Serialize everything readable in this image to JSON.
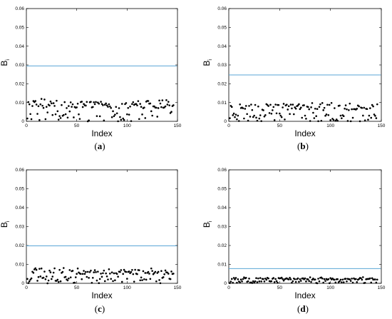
{
  "chart_data": [
    {
      "type": "scatter",
      "panel": "a",
      "caption_left": "(",
      "caption_letter": "a",
      "caption_right": ")",
      "xlabel": "Index",
      "ylabel_main": "B",
      "ylabel_sub": "i",
      "xlim": [
        0,
        150
      ],
      "ylim": [
        0,
        0.06
      ],
      "xticks": [
        0,
        50,
        100,
        150
      ],
      "yticks": [
        0,
        0.01,
        0.02,
        0.03,
        0.04,
        0.05,
        0.06
      ],
      "threshold": 0.0295,
      "threshold_color": "#5aa6d6",
      "point_color": "#000000",
      "max_value": 0.0155
    },
    {
      "type": "scatter",
      "panel": "b",
      "caption_left": "(",
      "caption_letter": "b",
      "caption_right": ")",
      "xlabel": "Index",
      "ylabel_main": "B",
      "ylabel_sub": "i",
      "xlim": [
        0,
        150
      ],
      "ylim": [
        0,
        0.06
      ],
      "xticks": [
        0,
        50,
        100,
        150
      ],
      "yticks": [
        0,
        0.01,
        0.02,
        0.03,
        0.04,
        0.05,
        0.06
      ],
      "threshold": 0.0247,
      "threshold_color": "#5aa6d6",
      "point_color": "#000000",
      "max_value": 0.0131
    },
    {
      "type": "scatter",
      "panel": "c",
      "caption_left": "(",
      "caption_letter": "c",
      "caption_right": ")",
      "xlabel": "Index",
      "ylabel_main": "B",
      "ylabel_sub": "i",
      "xlim": [
        0,
        150
      ],
      "ylim": [
        0,
        0.06
      ],
      "xticks": [
        0,
        50,
        100,
        150
      ],
      "yticks": [
        0,
        0.01,
        0.02,
        0.03,
        0.04,
        0.05,
        0.06
      ],
      "threshold": 0.0198,
      "threshold_color": "#5aa6d6",
      "point_color": "#000000",
      "max_value": 0.0105
    },
    {
      "type": "scatter",
      "panel": "d",
      "caption_left": "(",
      "caption_letter": "d",
      "caption_right": ")",
      "xlabel": "Index",
      "ylabel_main": "B",
      "ylabel_sub": "i",
      "xlim": [
        0,
        150
      ],
      "ylim": [
        0,
        0.06
      ],
      "xticks": [
        0,
        50,
        100,
        150
      ],
      "yticks": [
        0,
        0.01,
        0.02,
        0.03,
        0.04,
        0.05,
        0.06
      ],
      "threshold": 0.0078,
      "threshold_color": "#5aa6d6",
      "point_color": "#000000",
      "max_value": 0.0042
    }
  ]
}
